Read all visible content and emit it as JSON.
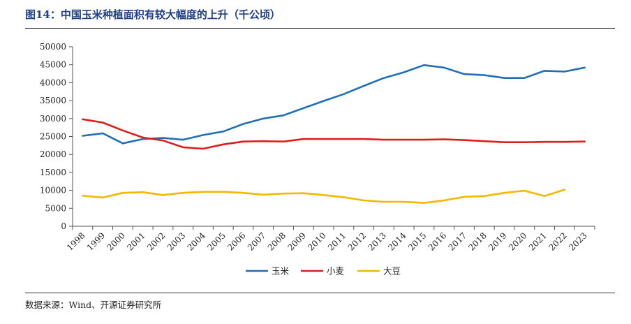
{
  "figure": {
    "title": "图14：中国玉米种植面积有较大幅度的上升（千公顷）",
    "source": "数据来源：Wind、开源证券研究所"
  },
  "chart_data": {
    "type": "line",
    "x": [
      "1998",
      "1999",
      "2000",
      "2001",
      "2002",
      "2003",
      "2004",
      "2005",
      "2006",
      "2007",
      "2008",
      "2009",
      "2010",
      "2011",
      "2012",
      "2013",
      "2014",
      "2015",
      "2016",
      "2017",
      "2018",
      "2019",
      "2020",
      "2021",
      "2022",
      "2023"
    ],
    "ylim": [
      0,
      50000
    ],
    "yticks": [
      0,
      5000,
      10000,
      15000,
      20000,
      25000,
      30000,
      35000,
      40000,
      45000,
      50000
    ],
    "grid": false,
    "legend_position": "bottom",
    "series": [
      {
        "name": "玉米",
        "color": "#1f6fb8",
        "values": [
          25200,
          25900,
          23100,
          24300,
          24600,
          24100,
          25400,
          26400,
          28500,
          30000,
          30900,
          32900,
          34900,
          36800,
          39100,
          41300,
          42900,
          44900,
          44200,
          42400,
          42100,
          41300,
          41300,
          43300,
          43100,
          44200
        ]
      },
      {
        "name": "小麦",
        "color": "#e01d1d",
        "values": [
          29800,
          28900,
          26700,
          24700,
          23900,
          22000,
          21600,
          22800,
          23600,
          23700,
          23600,
          24300,
          24300,
          24300,
          24300,
          24100,
          24100,
          24100,
          24200,
          24000,
          23700,
          23400,
          23400,
          23500,
          23500,
          23600
        ]
      },
      {
        "name": "大豆",
        "color": "#f5b800",
        "values": [
          8500,
          8000,
          9300,
          9500,
          8700,
          9300,
          9600,
          9600,
          9300,
          8800,
          9100,
          9200,
          8700,
          8100,
          7200,
          6800,
          6800,
          6500,
          7200,
          8200,
          8400,
          9300,
          9900,
          8400,
          10200,
          null
        ]
      }
    ]
  }
}
